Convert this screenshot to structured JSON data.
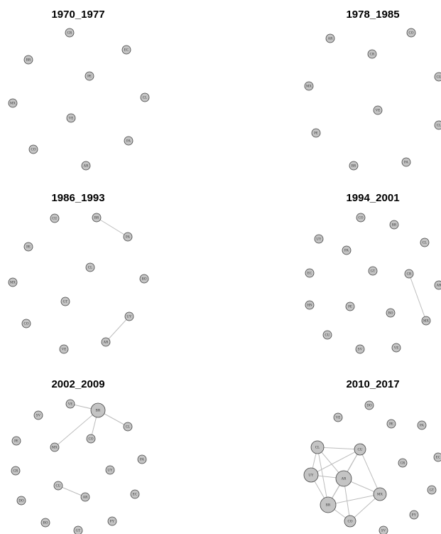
{
  "panels": [
    {
      "title": "1970_1977",
      "nodes": [
        "CR",
        "EC",
        "BR",
        "PE",
        "CL",
        "MX",
        "VE",
        "PA",
        "CO",
        "AR"
      ]
    },
    {
      "title": "1978_1985",
      "nodes": [
        "AR",
        "CO",
        "CR",
        "CU",
        "MX",
        "VE",
        "CL",
        "PE",
        "BR",
        "PA"
      ]
    },
    {
      "title": "1986_1993",
      "nodes": [
        "CU",
        "BR",
        "PA",
        "PE",
        "CL",
        "BO",
        "MX",
        "GT",
        "UY",
        "CO",
        "AR",
        "VE"
      ]
    },
    {
      "title": "1994_2001",
      "nodes": [
        "CO",
        "BR",
        "UY",
        "CL",
        "PA",
        "EC",
        "GT",
        "CR",
        "AR",
        "HN",
        "PE",
        "BO",
        "MX",
        "CU",
        "SV",
        "VE"
      ]
    },
    {
      "title": "2002_2009",
      "nodes": [
        "VE",
        "BR",
        "SV",
        "CL",
        "PE",
        "CO",
        "MX",
        "PA",
        "CR",
        "UY",
        "CU",
        "AR",
        "EC",
        "DO",
        "PY",
        "BO",
        "GT"
      ]
    },
    {
      "title": "2010_2017",
      "nodes": [
        "DO",
        "VE",
        "PE",
        "PA",
        "CL",
        "CU",
        "EC",
        "CR",
        "UY",
        "AR",
        "GT",
        "MX",
        "BR",
        "PY",
        "CO",
        "SV"
      ]
    }
  ]
}
